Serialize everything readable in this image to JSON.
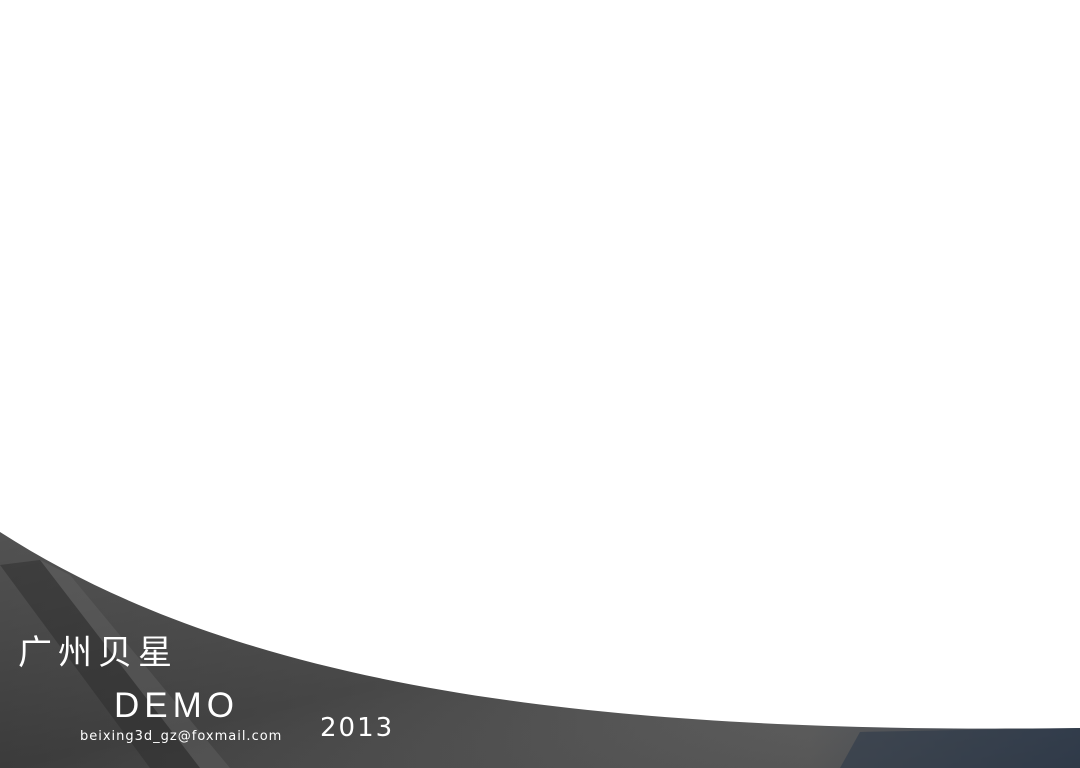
{
  "brand": {
    "name_cn": "广州贝星",
    "demo_label": "DEMO",
    "email": "beixing3d_gz@foxmail.com",
    "year": "2013"
  },
  "colors": {
    "background": "#ffffff",
    "band_dark": "#3f3f3f",
    "band_mid": "#5a5a5a",
    "band_accent": "#2f3a4a",
    "text": "#ffffff"
  }
}
